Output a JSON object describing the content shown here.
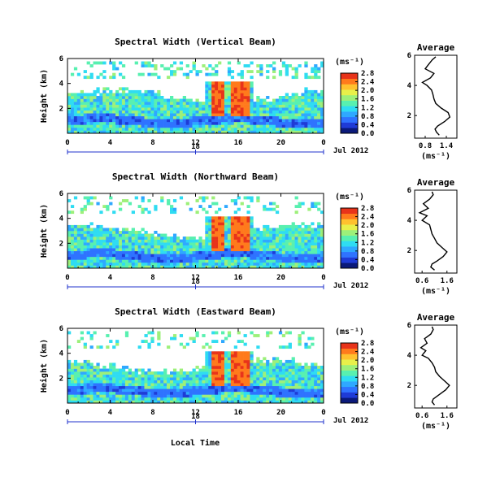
{
  "colors": {
    "colormap": [
      "#0b1a7a",
      "#1f3bd6",
      "#2f73ff",
      "#2fa8ff",
      "#2fdcf2",
      "#58f0b0",
      "#9df07a",
      "#e8f04a",
      "#ffc12e",
      "#ff7a1c",
      "#e8331a"
    ],
    "background": "#ffffff"
  },
  "footer": {
    "xlabel": "Local Time"
  },
  "chart_data": [
    {
      "type": "heatmap",
      "title": "Spectral Width (Vertical Beam)",
      "ylabel": "Height (km)",
      "yticks": [
        "6",
        "4",
        "2"
      ],
      "xticks": [
        "0",
        "4",
        "8",
        "12",
        "16",
        "20",
        "0"
      ],
      "xlim": [
        0,
        24
      ],
      "ylim": [
        0,
        6
      ],
      "date_tick": "18",
      "date_label": "Jul 2012",
      "colorbar": {
        "unit": "(ms⁻¹)",
        "ticks": [
          "2.8",
          "2.4",
          "2.0",
          "1.6",
          "1.2",
          "0.8",
          "0.4",
          "0.0"
        ],
        "range": [
          0,
          2.8
        ]
      },
      "average": {
        "title": "Average",
        "xlabel": "(ms⁻¹)",
        "xticks": [
          "0.8",
          "1.4"
        ],
        "xlim": [
          0.5,
          1.7
        ],
        "yticks": [
          "6",
          "4",
          "2"
        ],
        "ylim": [
          0.5,
          6
        ],
        "profile": [
          [
            1.2,
            0.7
          ],
          [
            1.12,
            0.9
          ],
          [
            1.08,
            1.1
          ],
          [
            1.15,
            1.3
          ],
          [
            1.35,
            1.6
          ],
          [
            1.5,
            1.9
          ],
          [
            1.45,
            2.2
          ],
          [
            1.25,
            2.5
          ],
          [
            1.1,
            2.8
          ],
          [
            1.05,
            3.1
          ],
          [
            1.02,
            3.4
          ],
          [
            0.98,
            3.7
          ],
          [
            0.85,
            4.0
          ],
          [
            0.72,
            4.2
          ],
          [
            0.95,
            4.5
          ],
          [
            1.05,
            4.8
          ],
          [
            0.8,
            5.1
          ],
          [
            0.9,
            5.4
          ],
          [
            1.0,
            5.7
          ],
          [
            1.1,
            5.9
          ]
        ]
      }
    },
    {
      "type": "heatmap",
      "title": "Spectral Width (Northward Beam)",
      "ylabel": "Height (km)",
      "yticks": [
        "6",
        "4",
        "2"
      ],
      "xticks": [
        "0",
        "4",
        "8",
        "12",
        "16",
        "20",
        "0"
      ],
      "xlim": [
        0,
        24
      ],
      "ylim": [
        0,
        6
      ],
      "date_tick": "18",
      "date_label": "Jul 2012",
      "colorbar": {
        "unit": "(ms⁻¹)",
        "ticks": [
          "2.8",
          "2.4",
          "2.0",
          "1.6",
          "1.2",
          "0.8",
          "0.4",
          "0.0"
        ],
        "range": [
          0,
          2.8
        ]
      },
      "average": {
        "title": "Average",
        "xlabel": "(ms⁻¹)",
        "xticks": [
          "0.6",
          "1.6"
        ],
        "xlim": [
          0.3,
          2.0
        ],
        "yticks": [
          "6",
          "4",
          "2"
        ],
        "ylim": [
          0.5,
          6
        ],
        "profile": [
          [
            1.1,
            0.7
          ],
          [
            0.95,
            0.9
          ],
          [
            1.0,
            1.1
          ],
          [
            1.2,
            1.3
          ],
          [
            1.45,
            1.6
          ],
          [
            1.6,
            1.9
          ],
          [
            1.4,
            2.2
          ],
          [
            1.2,
            2.5
          ],
          [
            1.1,
            2.8
          ],
          [
            1.0,
            3.1
          ],
          [
            0.95,
            3.4
          ],
          [
            0.9,
            3.7
          ],
          [
            0.6,
            4.0
          ],
          [
            0.8,
            4.3
          ],
          [
            0.5,
            4.5
          ],
          [
            0.85,
            4.8
          ],
          [
            0.65,
            5.1
          ],
          [
            0.9,
            5.4
          ],
          [
            1.05,
            5.7
          ],
          [
            1.0,
            5.9
          ]
        ]
      }
    },
    {
      "type": "heatmap",
      "title": "Spectral Width (Eastward Beam)",
      "ylabel": "Height (km)",
      "yticks": [
        "6",
        "4",
        "2"
      ],
      "xticks": [
        "0",
        "4",
        "8",
        "12",
        "16",
        "20",
        "0"
      ],
      "xlim": [
        0,
        24
      ],
      "ylim": [
        0,
        6
      ],
      "date_tick": "18",
      "date_label": "Jul 2012",
      "colorbar": {
        "unit": "(ms⁻¹)",
        "ticks": [
          "2.8",
          "2.4",
          "2.0",
          "1.6",
          "1.2",
          "0.8",
          "0.4",
          "0.0"
        ],
        "range": [
          0,
          2.8
        ]
      },
      "average": {
        "title": "Average",
        "xlabel": "(ms⁻¹)",
        "xticks": [
          "0.6",
          "1.6"
        ],
        "xlim": [
          0.3,
          2.0
        ],
        "yticks": [
          "6",
          "4",
          "2"
        ],
        "ylim": [
          0.5,
          6
        ],
        "profile": [
          [
            1.1,
            0.7
          ],
          [
            1.0,
            0.9
          ],
          [
            1.05,
            1.1
          ],
          [
            1.3,
            1.4
          ],
          [
            1.55,
            1.7
          ],
          [
            1.7,
            2.0
          ],
          [
            1.5,
            2.3
          ],
          [
            1.3,
            2.6
          ],
          [
            1.15,
            2.9
          ],
          [
            1.1,
            3.2
          ],
          [
            1.0,
            3.5
          ],
          [
            0.85,
            3.8
          ],
          [
            0.6,
            4.0
          ],
          [
            0.75,
            4.3
          ],
          [
            0.55,
            4.5
          ],
          [
            0.8,
            4.8
          ],
          [
            0.7,
            5.1
          ],
          [
            0.95,
            5.4
          ],
          [
            1.05,
            5.7
          ],
          [
            1.0,
            5.9
          ]
        ]
      }
    }
  ]
}
